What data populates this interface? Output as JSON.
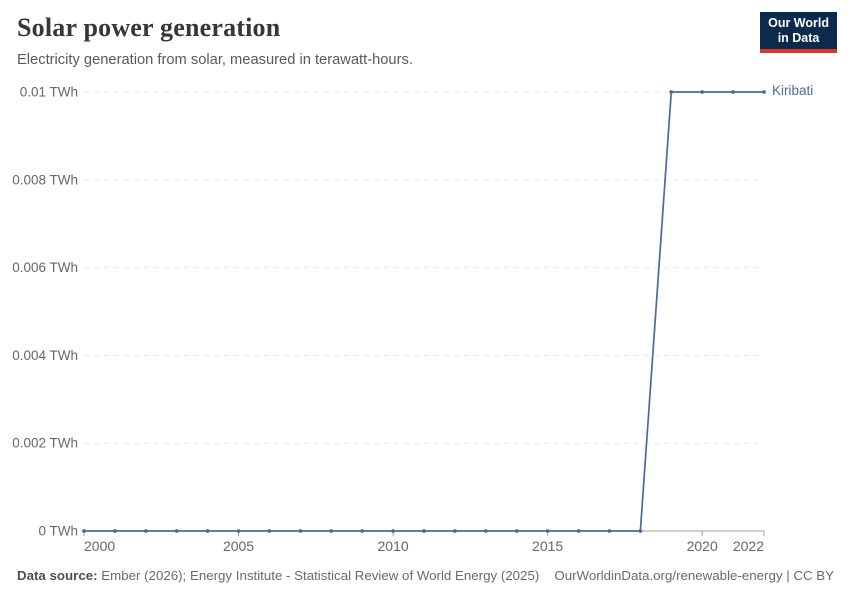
{
  "header": {
    "title": "Solar power generation",
    "subtitle": "Electricity generation from solar, measured in terawatt-hours.",
    "logo": {
      "line1": "Our World",
      "line2": "in Data",
      "bg_color": "#0d2a4d",
      "accent_color": "#d7372f"
    }
  },
  "chart_data": {
    "type": "line",
    "title": "Solar power generation",
    "subtitle": "Electricity generation from solar, measured in terawatt-hours.",
    "unit": "TWh",
    "x": [
      2000,
      2001,
      2002,
      2003,
      2004,
      2005,
      2006,
      2007,
      2008,
      2009,
      2010,
      2011,
      2012,
      2013,
      2014,
      2015,
      2016,
      2017,
      2018,
      2019,
      2020,
      2021,
      2022
    ],
    "series": [
      {
        "name": "Kiribati",
        "color": "#4c6a9c",
        "values": [
          0,
          0,
          0,
          0,
          0,
          0,
          0,
          0,
          0,
          0,
          0,
          0,
          0,
          0,
          0,
          0,
          0,
          0,
          0,
          0.01,
          0.01,
          0.01,
          0.01
        ]
      }
    ],
    "xlim": [
      2000,
      2022
    ],
    "ylim": [
      0,
      0.01
    ],
    "xticks": [
      2000,
      2005,
      2010,
      2015,
      2020,
      2022
    ],
    "yticks": [
      {
        "value": 0,
        "label": "0 TWh"
      },
      {
        "value": 0.002,
        "label": "0.002 TWh"
      },
      {
        "value": 0.004,
        "label": "0.004 TWh"
      },
      {
        "value": 0.006,
        "label": "0.006 TWh"
      },
      {
        "value": 0.008,
        "label": "0.008 TWh"
      },
      {
        "value": 0.01,
        "label": "0.01 TWh"
      }
    ],
    "grid": "dashed-horizontal",
    "legend_position": "line-end-right",
    "axis_color": "#9e9e9e",
    "grid_color": "#e7e7e7",
    "tick_label_color": "#666666"
  },
  "footer": {
    "source_label": "Data source:",
    "source_text": "Ember (2026); Energy Institute - Statistical Review of World Energy (2025)",
    "link_text": "OurWorldinData.org/renewable-energy | CC BY"
  }
}
